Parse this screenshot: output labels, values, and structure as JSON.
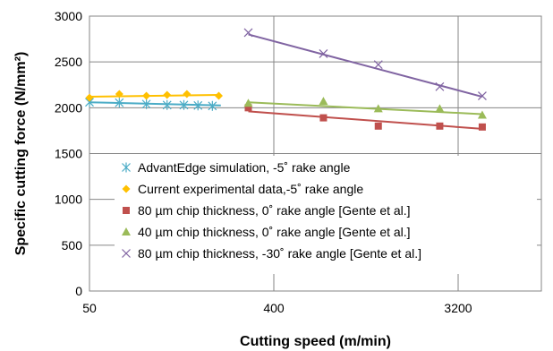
{
  "chart_data": {
    "type": "scatter",
    "title": "",
    "xlabel": "Cutting speed (m/min)",
    "ylabel": "Specific cutting force (N/mm²)",
    "xscale": "log",
    "xlim": [
      50,
      6000
    ],
    "ylim": [
      0,
      3000
    ],
    "x_ticks": [
      50,
      400,
      3200
    ],
    "x_tick_labels": [
      "50",
      "400",
      "3200"
    ],
    "y_ticks": [
      0,
      500,
      1000,
      1500,
      2000,
      2500,
      3000
    ],
    "y_tick_labels": [
      "0",
      "500",
      "1000",
      "1500",
      "2000",
      "2500",
      "3000"
    ],
    "grid": true,
    "legend_position": "bottom-right inside plot",
    "series": [
      {
        "name": "AdvantEdge simulation, -5˚ rake angle",
        "marker": "asterisk",
        "color": "#4bacc6",
        "x": [
          50,
          70,
          95,
          120,
          145,
          170,
          200
        ],
        "y": [
          2060,
          2055,
          2040,
          2030,
          2030,
          2025,
          2020
        ],
        "trendline": [
          [
            50,
            2060
          ],
          [
            220,
            2025
          ]
        ]
      },
      {
        "name": "Current experimental data,-5˚ rake angle",
        "marker": "diamond",
        "color": "#ffc000",
        "x": [
          50,
          70,
          95,
          120,
          150,
          215
        ],
        "y": [
          2110,
          2150,
          2130,
          2140,
          2150,
          2130
        ],
        "trendline": [
          [
            50,
            2120
          ],
          [
            215,
            2140
          ]
        ]
      },
      {
        "name": "80 µm chip thickness, 0˚ rake angle [Gente et al.]",
        "marker": "square",
        "color": "#c0504d",
        "x": [
          300,
          700,
          1300,
          2600,
          4200
        ],
        "y": [
          2000,
          1890,
          1800,
          1800,
          1790
        ],
        "trendline": [
          [
            300,
            1960
          ],
          [
            4200,
            1770
          ]
        ]
      },
      {
        "name": "40 µm chip thickness, 0˚ rake angle [Gente et al.]",
        "marker": "triangle",
        "color": "#9bbb59",
        "x": [
          300,
          700,
          1300,
          2600,
          4200
        ],
        "y": [
          2050,
          2070,
          1990,
          1990,
          1920
        ],
        "trendline": [
          [
            300,
            2060
          ],
          [
            4200,
            1930
          ]
        ]
      },
      {
        "name": "80 µm chip thickness, -30˚ rake angle [Gente et al.]",
        "marker": "x",
        "color": "#8064a2",
        "x": [
          300,
          700,
          1300,
          2600,
          4200
        ],
        "y": [
          2820,
          2590,
          2470,
          2230,
          2130
        ],
        "trendline": [
          [
            300,
            2800
          ],
          [
            4200,
            2120
          ]
        ]
      }
    ]
  }
}
